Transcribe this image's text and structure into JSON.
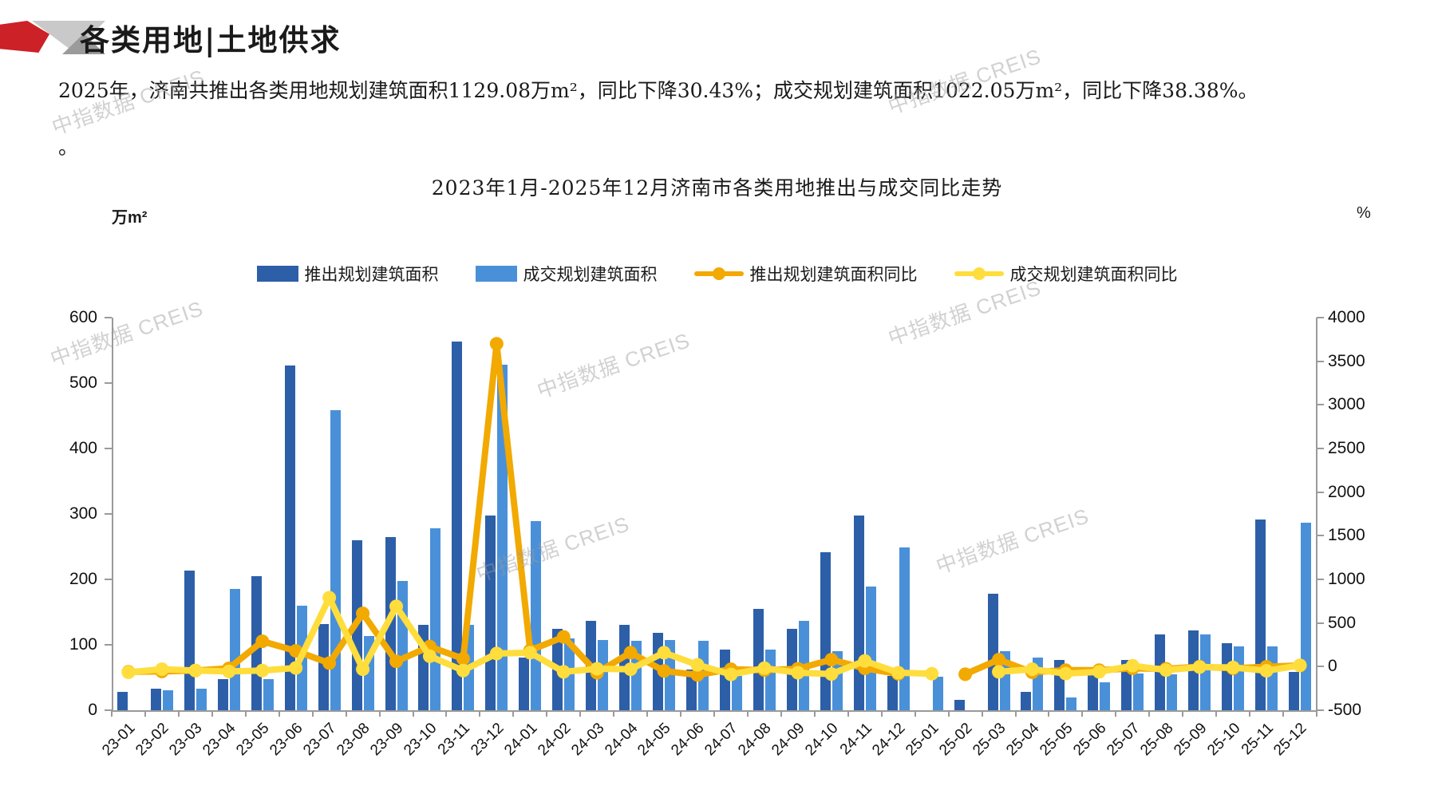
{
  "header": {
    "title": "各类用地|土地供求"
  },
  "summary": {
    "line1": "2025年，济南共推出各类用地规划建筑面积1129.08万m²，同比下降30.43%；成交规划建筑面积1022.05万m²，同比下降38.38%。",
    "line2": "。"
  },
  "watermark": {
    "text": "中指数据 CREIS"
  },
  "chart_data": {
    "type": "bar",
    "subtype": "bar-line-combo",
    "title": "2023年1月-2025年12月济南市各类用地推出与成交同比走势",
    "left_axis": {
      "label": "万m²",
      "min": 0,
      "max": 600,
      "step": 100
    },
    "right_axis": {
      "label": "%",
      "min": -500,
      "max": 4000,
      "step": 500
    },
    "grid": "off",
    "legend_position": "top-center",
    "categories": [
      "23-01",
      "23-02",
      "23-03",
      "23-04",
      "23-05",
      "23-06",
      "23-07",
      "23-08",
      "23-09",
      "23-10",
      "23-11",
      "23-12",
      "24-01",
      "24-02",
      "24-03",
      "24-04",
      "24-05",
      "24-06",
      "24-07",
      "24-08",
      "24-09",
      "24-10",
      "24-11",
      "24-12",
      "25-01",
      "25-02",
      "25-03",
      "25-04",
      "25-05",
      "25-06",
      "25-07",
      "25-08",
      "25-09",
      "25-10",
      "25-11",
      "25-12"
    ],
    "series": [
      {
        "name": "推出规划建筑面积",
        "type": "bar",
        "axis": "left",
        "color": "#2D5FA8",
        "values": [
          28,
          33,
          213,
          47,
          205,
          527,
          132,
          260,
          265,
          130,
          563,
          298,
          80,
          125,
          137,
          130,
          118,
          62,
          93,
          155,
          125,
          241,
          298,
          52,
          0,
          16,
          178,
          28,
          77,
          56,
          77,
          116,
          122,
          102,
          291,
          59
        ]
      },
      {
        "name": "成交规划建筑面积",
        "type": "bar",
        "axis": "left",
        "color": "#4A90D9",
        "values": [
          0,
          30,
          33,
          185,
          48,
          160,
          458,
          113,
          198,
          278,
          130,
          528,
          289,
          110,
          107,
          106,
          107,
          106,
          52,
          93,
          137,
          90,
          189,
          249,
          51,
          0,
          90,
          81,
          20,
          43,
          56,
          55,
          116,
          97,
          98,
          287
        ]
      },
      {
        "name": "推出规划建筑面积同比",
        "type": "line",
        "axis": "right",
        "color": "#F2A900",
        "values": [
          -60,
          -55,
          -45,
          -20,
          290,
          180,
          40,
          610,
          60,
          230,
          90,
          3700,
          186,
          340,
          -70,
          160,
          -50,
          -95,
          -30,
          -40,
          -25,
          80,
          -20,
          -83,
          null,
          -87,
          80,
          -65,
          -40,
          -40,
          -20,
          -25,
          0,
          -20,
          -2,
          13
        ]
      },
      {
        "name": "成交规划建筑面积同比",
        "type": "line",
        "axis": "right",
        "color": "#FFDD3C",
        "values": [
          -65,
          -30,
          -45,
          -55,
          -45,
          -15,
          790,
          -30,
          690,
          120,
          -45,
          150,
          160,
          -60,
          -25,
          -30,
          160,
          20,
          -89,
          -18,
          -70,
          -85,
          65,
          -70,
          -82,
          null,
          -60,
          -30,
          -80,
          -60,
          10,
          -40,
          -5,
          -10,
          -48,
          15
        ]
      }
    ]
  }
}
